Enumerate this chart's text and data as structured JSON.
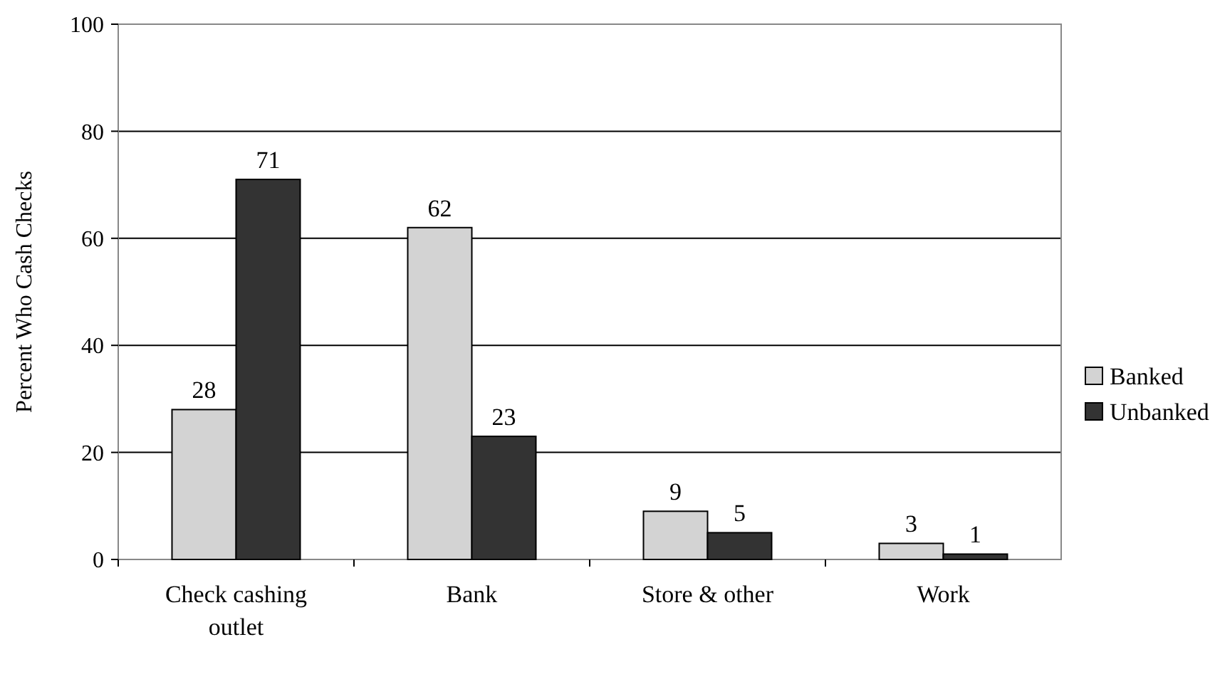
{
  "chart_data": {
    "type": "bar",
    "ylabel": "Percent Who Cash Checks",
    "categories": [
      "Check cashing outlet",
      "Bank",
      "Store & other",
      "Work"
    ],
    "series": [
      {
        "name": "Banked",
        "color": "#d3d3d3",
        "values": [
          28,
          62,
          9,
          3
        ]
      },
      {
        "name": "Unbanked",
        "color": "#333333",
        "values": [
          71,
          23,
          5,
          1
        ]
      }
    ],
    "ylim": [
      0,
      100
    ],
    "yticks": [
      0,
      20,
      40,
      60,
      80,
      100
    ],
    "grid": "y",
    "legend": "right",
    "data_labels": true
  }
}
